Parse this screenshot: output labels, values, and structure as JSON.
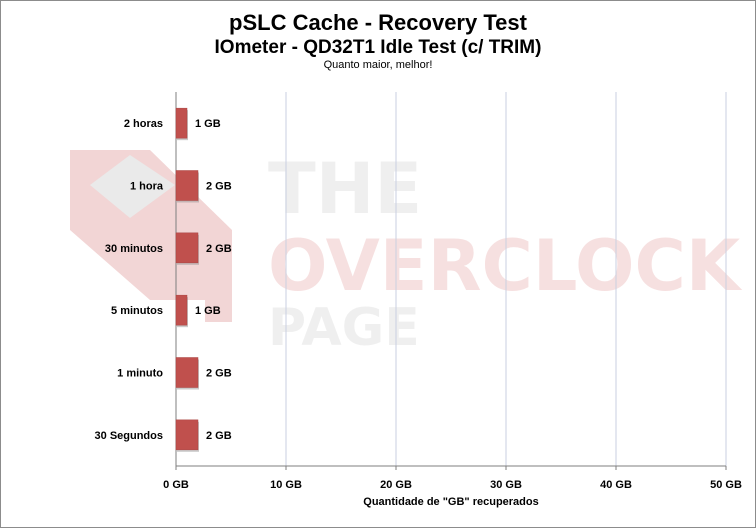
{
  "chart_data": {
    "type": "bar",
    "orientation": "horizontal",
    "title": "pSLC Cache  - Recovery  Test",
    "subtitle": "IOmeter - QD32T1 Idle Test (c/ TRIM)",
    "note": "Quanto maior, melhor!",
    "xlabel": "Quantidade  de \"GB\"  recuperados",
    "ylabel": "",
    "categories": [
      "2 horas",
      "1 hora",
      "30 minutos",
      "5 minutos",
      "1 minuto",
      "30 Segundos"
    ],
    "values": [
      1,
      2,
      2,
      1,
      2,
      2
    ],
    "data_labels": [
      "1 GB",
      "2 GB",
      "2 GB",
      "1 GB",
      "2 GB",
      "2 GB"
    ],
    "xlim": [
      0,
      50
    ],
    "x_ticks": [
      0,
      10,
      20,
      30,
      40,
      50
    ],
    "x_tick_labels": [
      "0 GB",
      "10 GB",
      "20 GB",
      "30 GB",
      "40 GB",
      "50 GB"
    ],
    "grid": true,
    "legend": "none",
    "bar_color": "#c0504d"
  },
  "watermark": {
    "lines": [
      "THE",
      "OVERCLOCK",
      "PAGE"
    ],
    "color": "#f2d9d9"
  }
}
